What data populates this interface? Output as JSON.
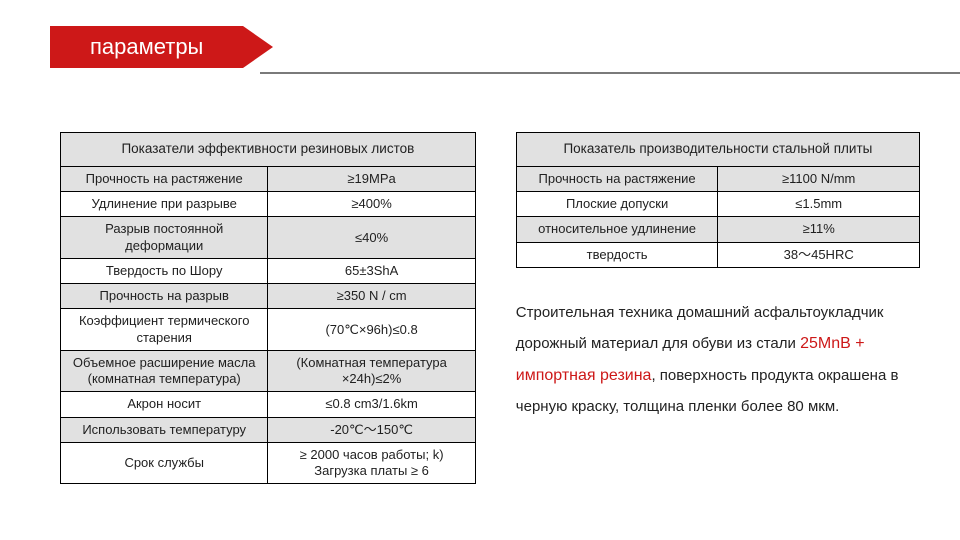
{
  "banner": {
    "title": "параметры"
  },
  "colors": {
    "accent": "#cd1818",
    "shade": "#e1e1e1",
    "rule": "#7a7a7a",
    "text": "#1f1f1f",
    "background": "#ffffff"
  },
  "typography": {
    "banner_fontsize": 22,
    "table_fontsize": 13,
    "desc_fontsize": 15,
    "highlight_fontsize": 16
  },
  "table_left": {
    "header": "Показатели эффективности резиновых листов",
    "col_widths": [
      "58%",
      "42%"
    ],
    "rows": [
      {
        "label": "Прочность на растяжение",
        "value": "≥19MPa",
        "shade": true
      },
      {
        "label": "Удлинение при разрыве",
        "value": "≥400%",
        "shade": false
      },
      {
        "label": "Разрыв постоянной деформации",
        "value": "≤40%",
        "shade": true
      },
      {
        "label": "Твердость по Шору",
        "value": "65±3ShA",
        "shade": false
      },
      {
        "label": "Прочность на разрыв",
        "value": "≥350 N / cm",
        "shade": true
      },
      {
        "label": "Коэффициент термического старения",
        "value": "(70℃×96h)≤0.8",
        "shade": false
      },
      {
        "label": "Объемное расширение масла (комнатная температура)",
        "value": "(Комнатная температура ×24h)≤2%",
        "shade": true
      },
      {
        "label": "Акрон носит",
        "value": "≤0.8 cm3/1.6km",
        "shade": false
      },
      {
        "label": "Использовать температуру",
        "value": "-20℃～150℃",
        "shade": true
      },
      {
        "label": "Срок службы",
        "value": "≥ 2000 часов работы; k) Загрузка платы ≥ 6",
        "shade": false
      }
    ]
  },
  "table_right": {
    "header": "Показатель производительности стальной плиты",
    "col_widths": [
      "60%",
      "40%"
    ],
    "rows": [
      {
        "label": "Прочность на растяжение",
        "value": "≥1100 N/mm",
        "shade": true
      },
      {
        "label": "Плоские допуски",
        "value": "≤1.5mm",
        "shade": false
      },
      {
        "label": "относительное удлинение",
        "value": "≥11%",
        "shade": true
      },
      {
        "label": "твердость",
        "value": "38～45HRC",
        "shade": false
      }
    ]
  },
  "description": {
    "pre": "Строительная техника домашний асфальтоукладчик дорожный материал для обуви из стали ",
    "highlight": "25MnB + импортная резина",
    "post": ", поверхность продукта окрашена в черную краску, толщина пленки более 80 мкм."
  }
}
